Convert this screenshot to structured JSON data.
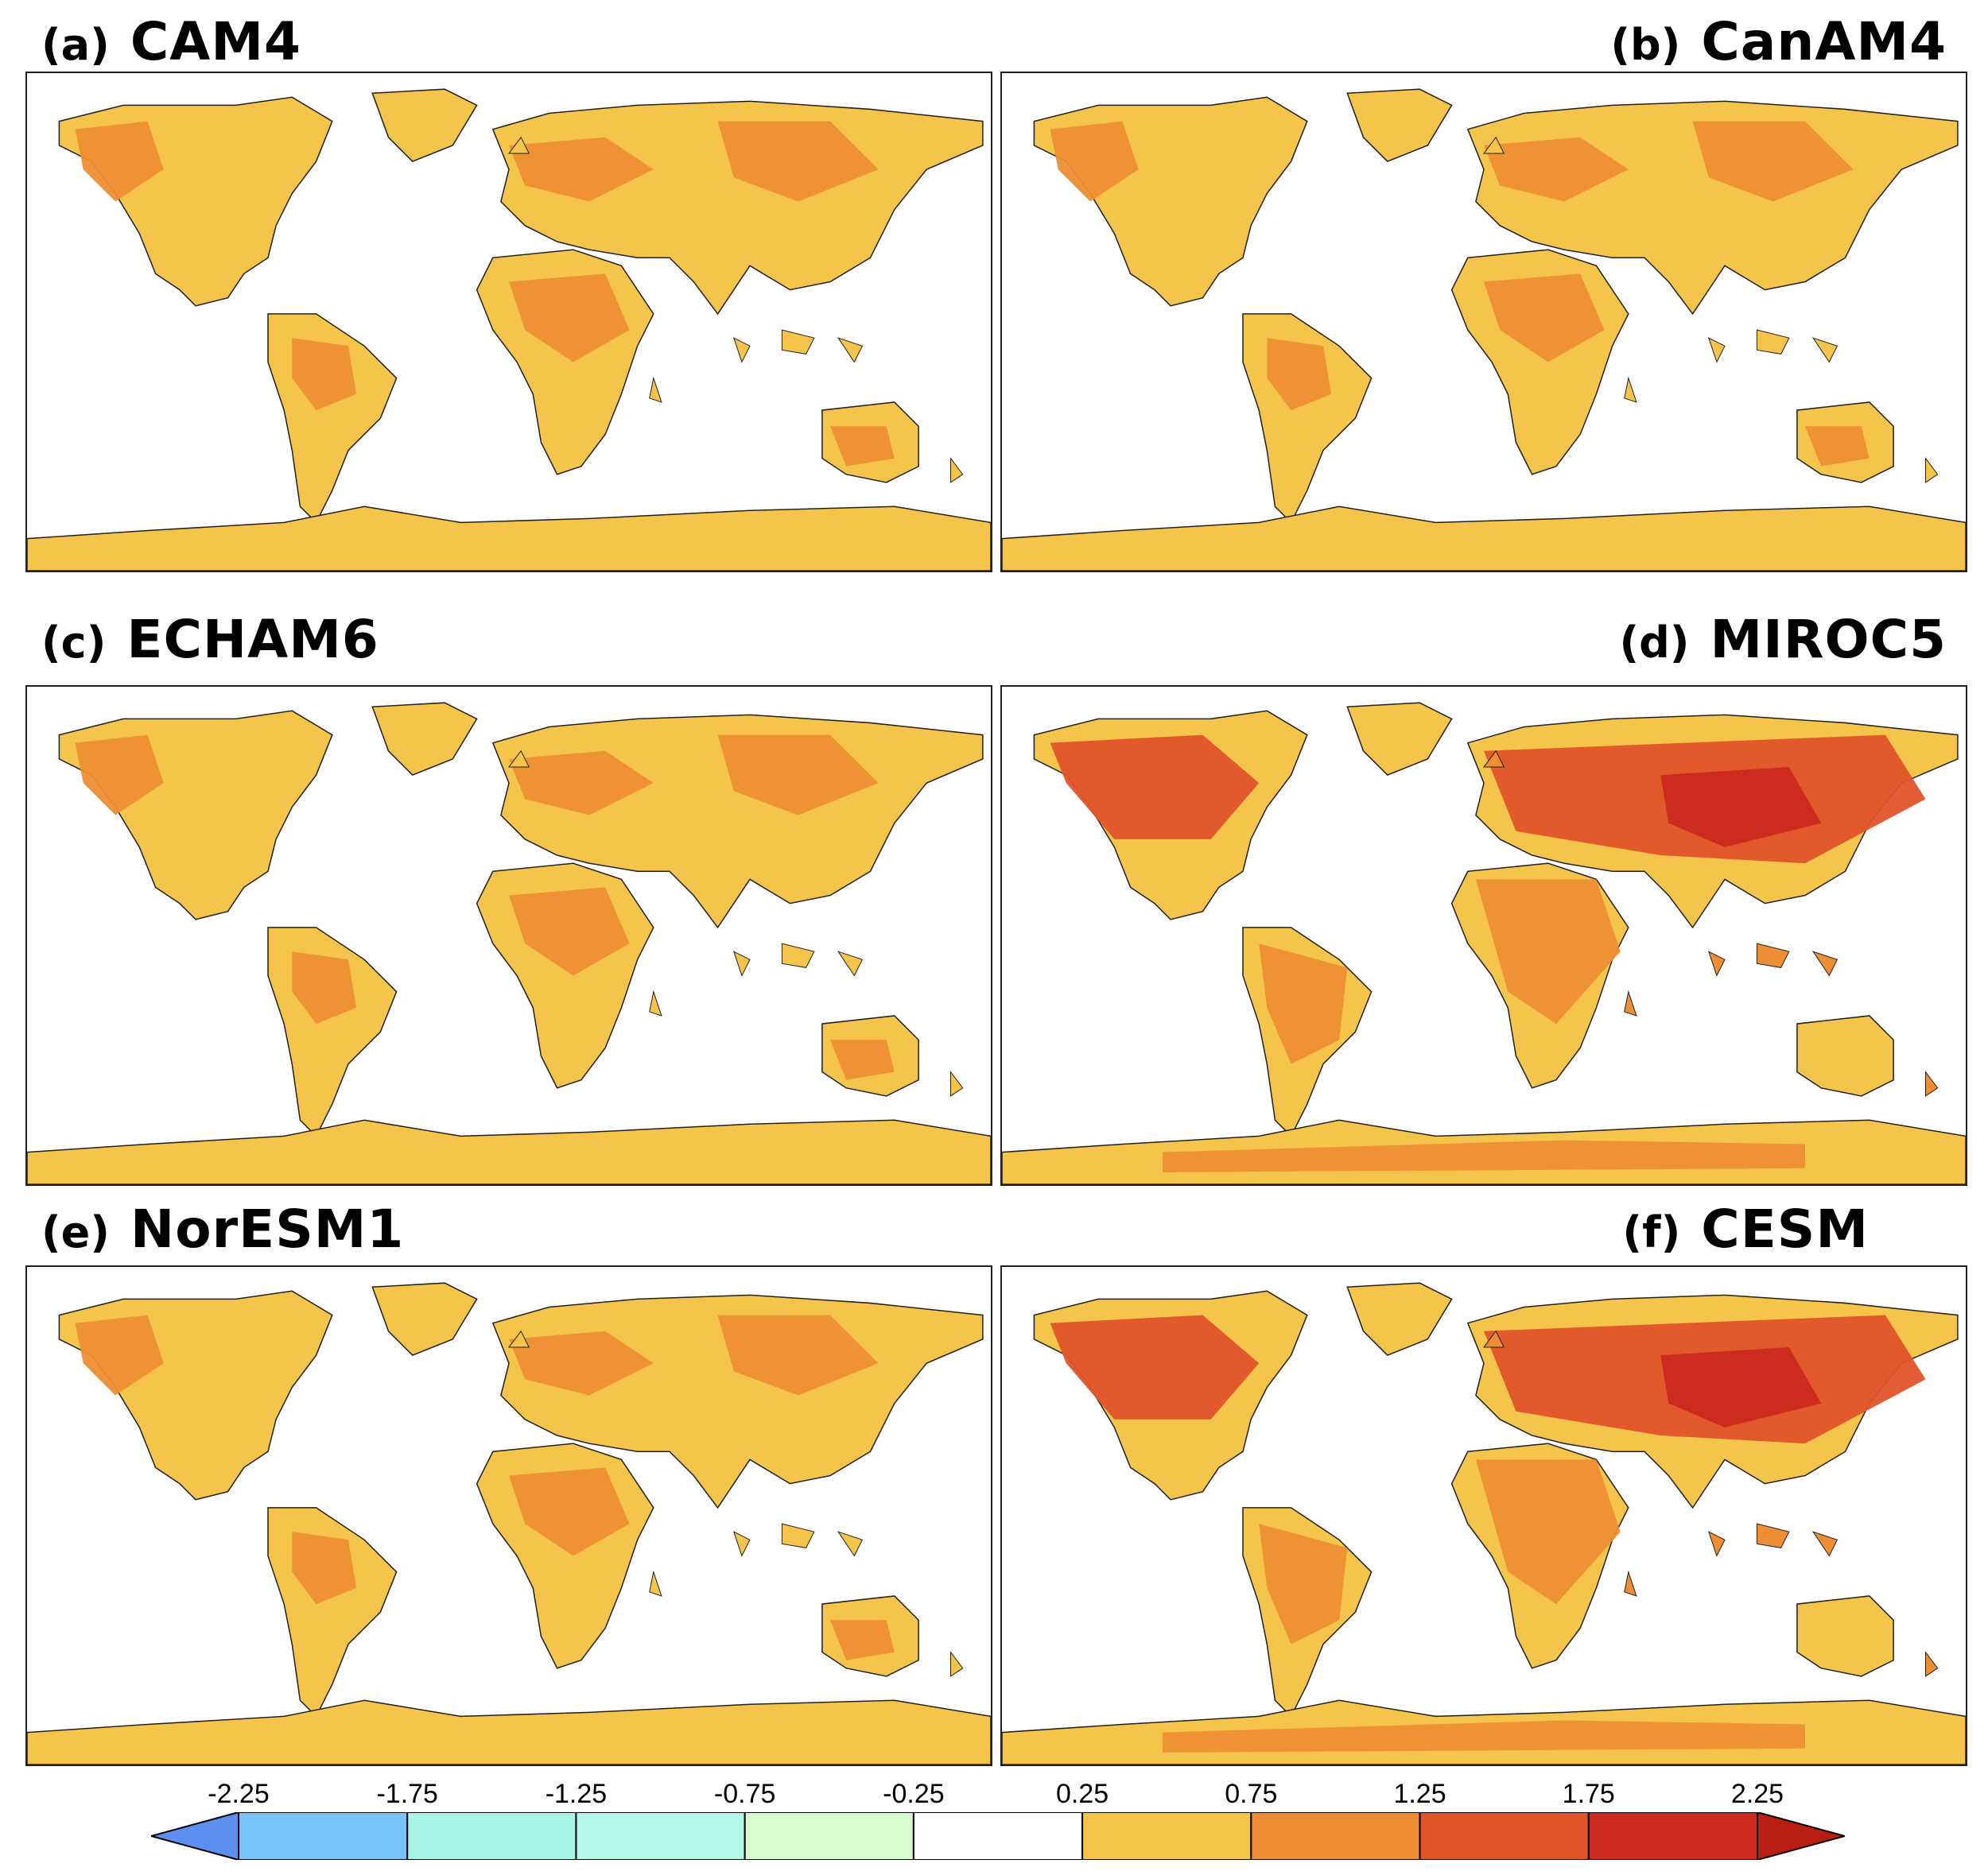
{
  "panels": [
    {
      "label": "(a)",
      "model": "CAM4",
      "shade": "mid"
    },
    {
      "label": "(b)",
      "model": "CanAM4",
      "shade": "mid"
    },
    {
      "label": "(c)",
      "model": "ECHAM6",
      "shade": "mid"
    },
    {
      "label": "(d)",
      "model": "MIROC5",
      "shade": "high"
    },
    {
      "label": "(e)",
      "model": "NorESM1",
      "shade": "mid"
    },
    {
      "label": "(f)",
      "model": "CESM",
      "shade": "high"
    }
  ],
  "colorbar": {
    "ticks": [
      "-2.25",
      "-1.75",
      "-1.25",
      "-0.75",
      "-0.25",
      "0.25",
      "0.75",
      "1.25",
      "1.75",
      "2.25"
    ],
    "colors": [
      "#5b8ff0",
      "#78c3f8",
      "#a8f5e6",
      "#b3f7e6",
      "#d8fcd0",
      "#ffffff",
      "#f4c54a",
      "#ee8e34",
      "#e0542a",
      "#c92a1c",
      "#b81f12"
    ]
  }
}
